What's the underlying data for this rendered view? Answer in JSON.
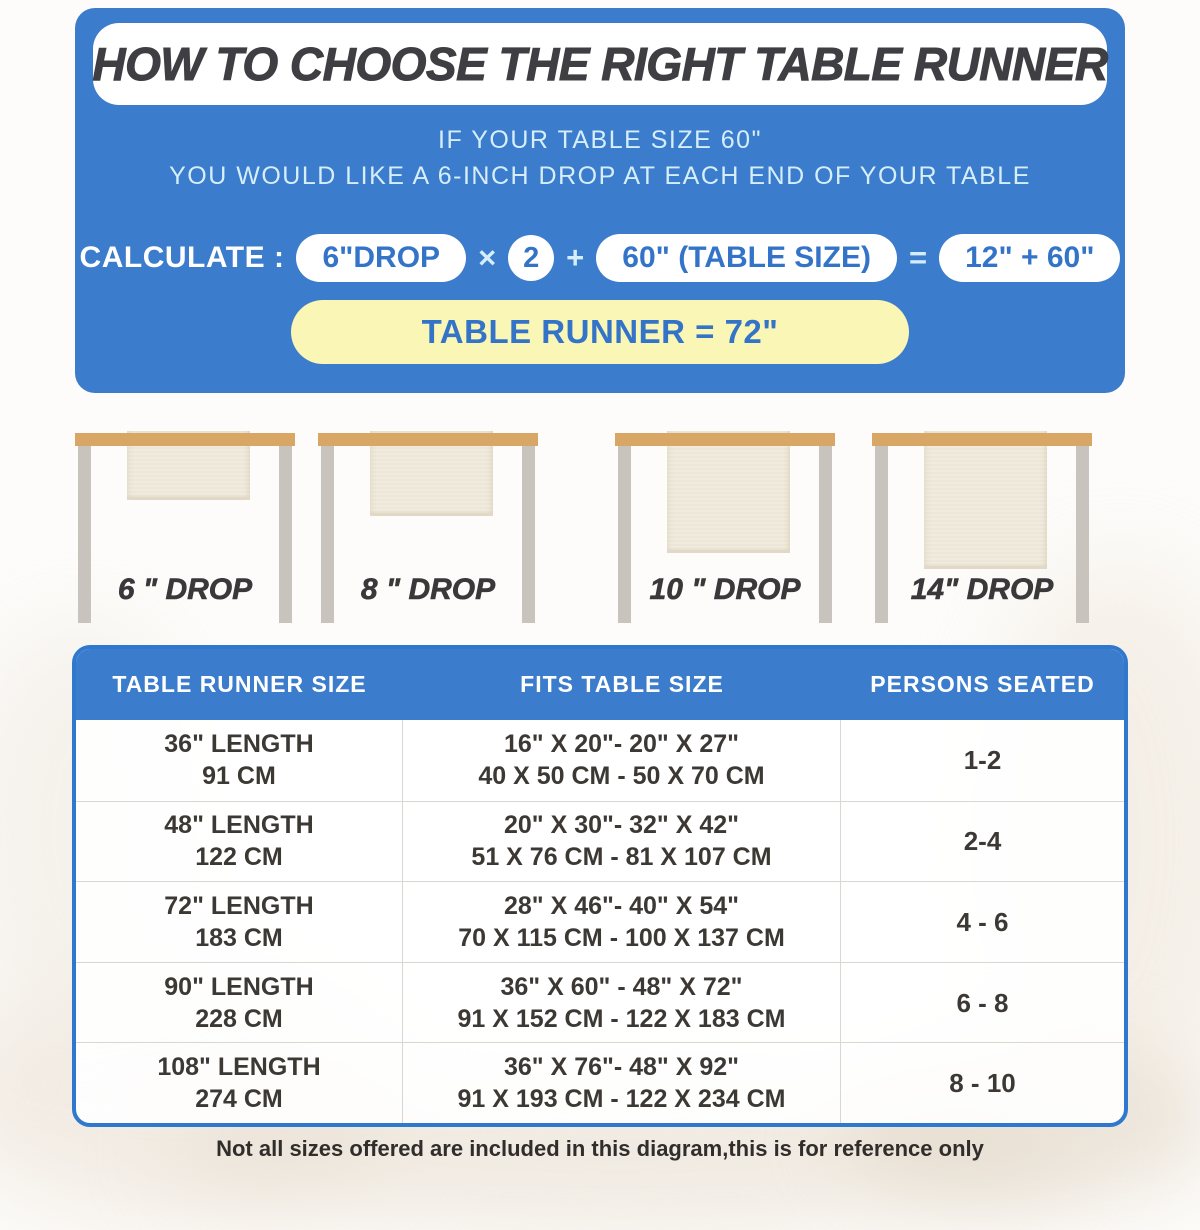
{
  "colors": {
    "panel_blue": "#3B7CCC",
    "table_border_blue": "#2E79CE",
    "pill_text_blue": "#3474C8",
    "light_blue_text": "#D5EEFA",
    "result_yellow": "#FAF6B5",
    "wood_tan": "#D8A766",
    "leg_gray": "#C9C3BD",
    "runner_cream": "#F0EBDD",
    "title_dark": "#3F3E42"
  },
  "header": {
    "title": "HOW TO CHOOSE THE RIGHT TABLE RUNNER",
    "line1": "IF YOUR TABLE SIZE 60\"",
    "line2": "YOU WOULD LIKE A 6-INCH DROP AT EACH END OF YOUR TABLE",
    "calc_label": "CALCULATE :",
    "pill_drop": "6\"DROP",
    "op_times": "×",
    "multiplier": "2",
    "op_plus": "+",
    "pill_table_size": "60\" (TABLE SIZE)",
    "op_equals": "=",
    "pill_sum": "12\" + 60\"",
    "result": "TABLE RUNNER = 72\""
  },
  "drop_examples": [
    {
      "label": "6 \" DROP"
    },
    {
      "label": "8 \" DROP"
    },
    {
      "label": "10 \" DROP"
    },
    {
      "label": "14\" DROP"
    }
  ],
  "size_table": {
    "columns": [
      "TABLE RUNNER SIZE",
      "FITS TABLE SIZE",
      "PERSONS SEATED"
    ],
    "rows": [
      {
        "length_in": "36\" LENGTH",
        "length_cm": "91 CM",
        "fits_in": "16\" X 20\"- 20\" X 27\"",
        "fits_cm": "40 X 50 CM - 50 X 70 CM",
        "persons": "1-2"
      },
      {
        "length_in": "48\" LENGTH",
        "length_cm": "122 CM",
        "fits_in": "20\" X 30\"- 32\" X 42\"",
        "fits_cm": "51 X 76 CM - 81 X 107 CM",
        "persons": "2-4"
      },
      {
        "length_in": "72\" LENGTH",
        "length_cm": "183 CM",
        "fits_in": "28\" X 46\"- 40\" X 54\"",
        "fits_cm": "70 X 115 CM - 100 X 137 CM",
        "persons": "4 - 6"
      },
      {
        "length_in": "90\" LENGTH",
        "length_cm": "228 CM",
        "fits_in": "36\" X 60\" - 48\" X 72\"",
        "fits_cm": "91 X 152 CM - 122 X 183 CM",
        "persons": "6 - 8"
      },
      {
        "length_in": "108\" LENGTH",
        "length_cm": "274 CM",
        "fits_in": "36\" X 76\"- 48\" X 92\"",
        "fits_cm": "91 X 193 CM - 122 X 234 CM",
        "persons": "8 - 10"
      }
    ]
  },
  "footnote": "Not all sizes offered are included in this diagram,this is for reference only"
}
